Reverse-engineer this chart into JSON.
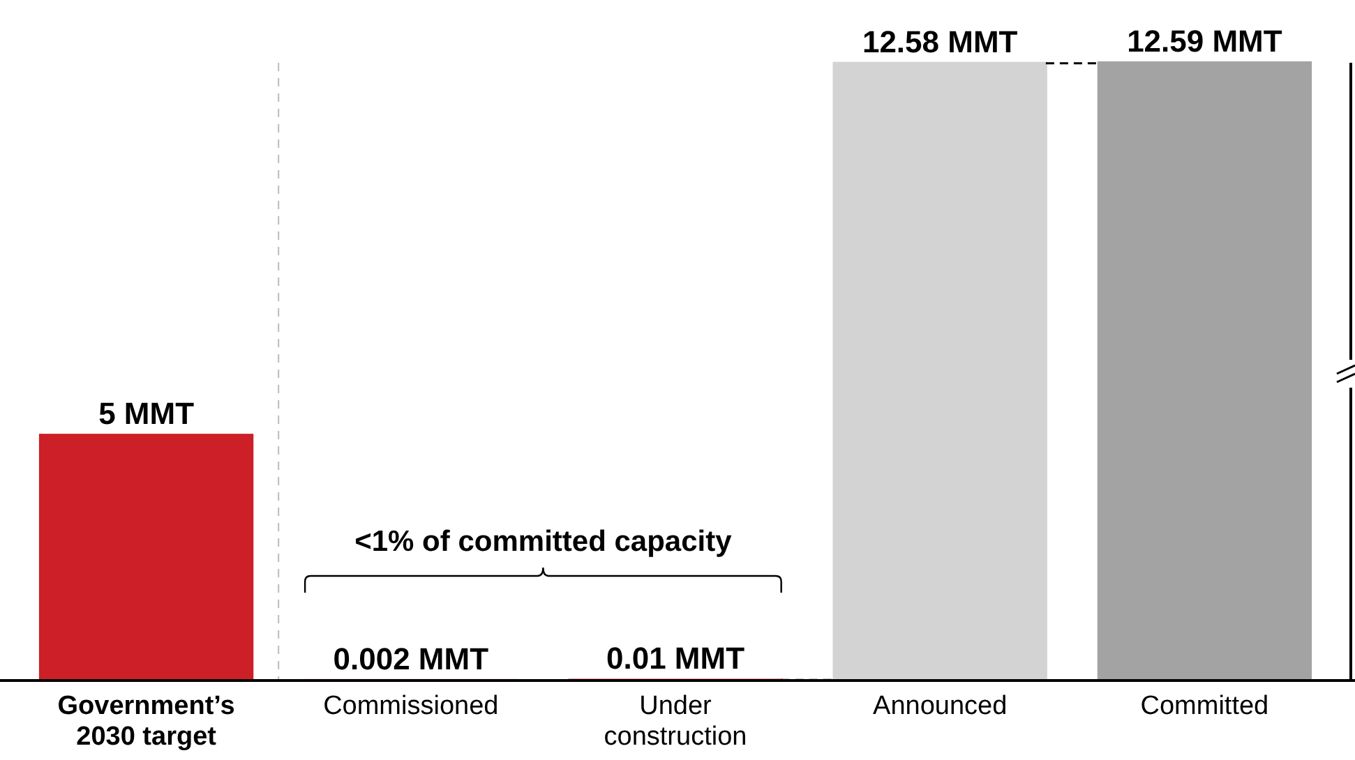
{
  "chart_data": {
    "type": "bar",
    "categories": [
      "Government’s 2030 target",
      "Commissioned",
      "Under construction",
      "Announced",
      "Committed"
    ],
    "values": [
      5,
      0.002,
      0.01,
      12.58,
      12.59
    ],
    "colors": [
      "#cc1f27",
      "#f06466",
      "#f06466",
      "#d3d3d3",
      "#a3a3a3"
    ],
    "value_labels": [
      "5 MMT",
      "0.002 MMT",
      "0.01 MMT",
      "12.58 MMT",
      "12.59 MMT"
    ],
    "annotations": [
      "<1% of committed capacity"
    ]
  }
}
